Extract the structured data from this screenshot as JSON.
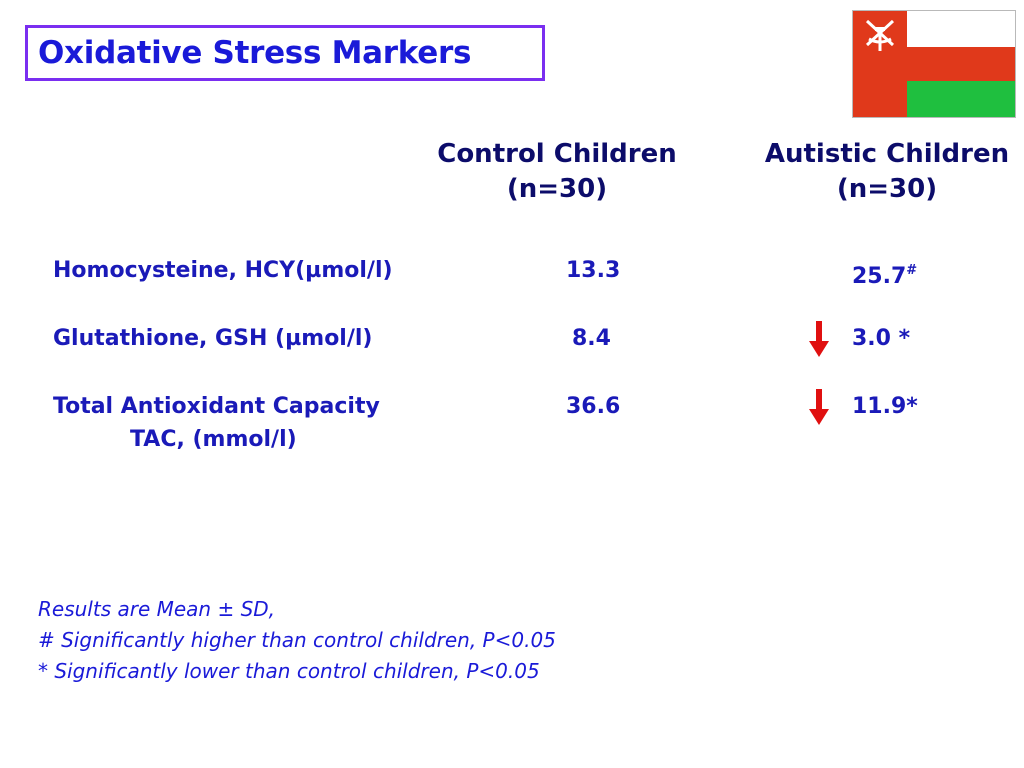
{
  "title": "Oxidative Stress Markers",
  "columns": [
    {
      "name": "Control Children",
      "n": "(n=30)"
    },
    {
      "name": "Autistic Children",
      "n": "(n=30)"
    }
  ],
  "rows": [
    {
      "label": "Homocysteine, HCY(µmol/l)",
      "label2": "",
      "control": "13.3",
      "autistic": "25.7",
      "autistic_mark": "#",
      "autistic_arrow": "none"
    },
    {
      "label": "Glutathione, GSH (µmol/l)",
      "label2": "",
      "control": "8.4",
      "autistic": "3.0 *",
      "autistic_mark": "",
      "autistic_arrow": "down"
    },
    {
      "label": "Total Antioxidant Capacity",
      "label2": "TAC, (mmol/l)",
      "control": "36.6",
      "autistic": "11.9*",
      "autistic_mark": "",
      "autistic_arrow": "down"
    }
  ],
  "notes": [
    "Results are Mean ± SD,",
    "# Significantly higher than control children, P<0.05",
    "* Significantly lower than control children, P<0.05"
  ],
  "colors": {
    "title_text": "#1a1ad8",
    "title_border": "#7a2ef0",
    "header_text": "#0c0c6a",
    "body_text": "#1a1ab8",
    "arrow": "#e01010",
    "flag_red": "#e0391b",
    "flag_green": "#1fbf3f"
  },
  "icons": [
    "oman-flag-icon",
    "down-arrow-icon"
  ]
}
